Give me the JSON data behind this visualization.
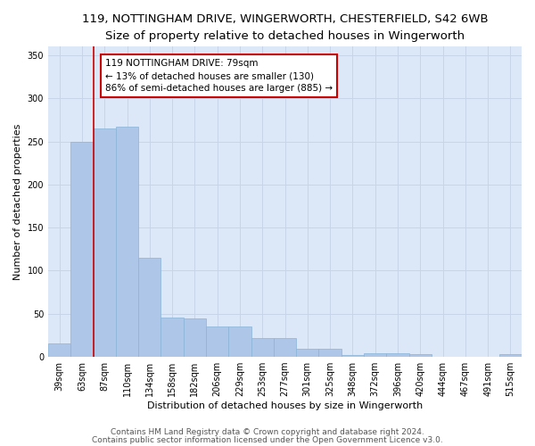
{
  "title_line1": "119, NOTTINGHAM DRIVE, WINGERWORTH, CHESTERFIELD, S42 6WB",
  "title_line2": "Size of property relative to detached houses in Wingerworth",
  "xlabel": "Distribution of detached houses by size in Wingerworth",
  "ylabel": "Number of detached properties",
  "categories": [
    "39sqm",
    "63sqm",
    "87sqm",
    "110sqm",
    "134sqm",
    "158sqm",
    "182sqm",
    "206sqm",
    "229sqm",
    "253sqm",
    "277sqm",
    "301sqm",
    "325sqm",
    "348sqm",
    "372sqm",
    "396sqm",
    "420sqm",
    "444sqm",
    "467sqm",
    "491sqm",
    "515sqm"
  ],
  "values": [
    16,
    250,
    265,
    267,
    115,
    46,
    45,
    35,
    35,
    22,
    22,
    9,
    9,
    2,
    4,
    4,
    3,
    0,
    0,
    0,
    3
  ],
  "bar_color": "#aec6e8",
  "bar_edge_color": "#8ab4d8",
  "vline_x": 1.5,
  "vline_color": "#cc0000",
  "annotation_text": "119 NOTTINGHAM DRIVE: 79sqm\n← 13% of detached houses are smaller (130)\n86% of semi-detached houses are larger (885) →",
  "annotation_box_color": "#ffffff",
  "annotation_box_edge": "#cc0000",
  "ylim": [
    0,
    360
  ],
  "yticks": [
    0,
    50,
    100,
    150,
    200,
    250,
    300,
    350
  ],
  "grid_color": "#c8d4e8",
  "bg_color": "#dce8f8",
  "footer_line1": "Contains HM Land Registry data © Crown copyright and database right 2024.",
  "footer_line2": "Contains public sector information licensed under the Open Government Licence v3.0.",
  "title_fontsize": 9.5,
  "subtitle_fontsize": 8.5,
  "axis_label_fontsize": 8,
  "tick_fontsize": 7,
  "annotation_fontsize": 7.5,
  "footer_fontsize": 6.5
}
